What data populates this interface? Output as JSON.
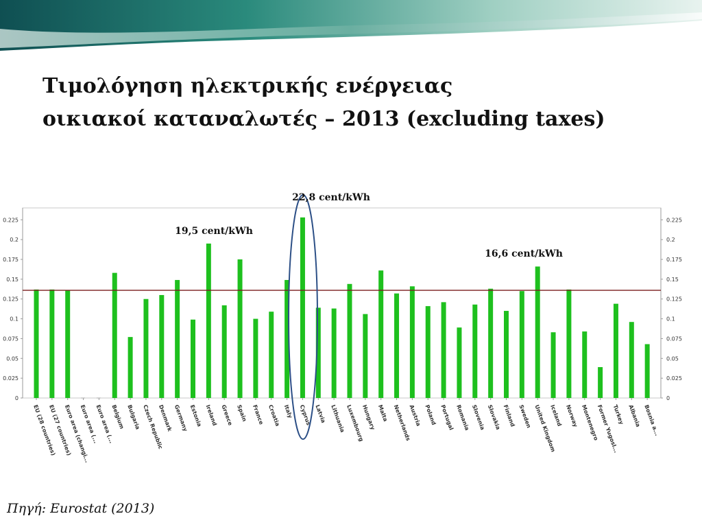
{
  "slide": {
    "title_line1": "Τιμολόγηση ηλεκτρικής ενέργειας",
    "title_line2": "οικιακοί καταναλωτές – 2013 (excluding taxes)",
    "source": "Πηγή: Eurostat (2013)"
  },
  "annotations": {
    "cyprus_label": "22,8 cent/kWh",
    "ireland_label": "19,5 cent/kWh",
    "uk_label": "16,6 cent/kWh"
  },
  "colors": {
    "bar": "#1ec01e",
    "reference_line": "#7a1f1f",
    "highlight_ellipse": "#2c4f86",
    "header_teal": "#1f6f6a"
  },
  "chart_data": {
    "type": "bar",
    "categories": [
      "EU (28 countries)",
      "EU (27 countries)",
      "Euro area (changi...",
      "Euro area (...",
      "Euro area (...",
      "Belgium",
      "Bulgaria",
      "Czech Republic",
      "Denmark",
      "Germany",
      "Estonia",
      "Ireland",
      "Greece",
      "Spain",
      "France",
      "Croatia",
      "Italy",
      "Cyprus",
      "Latvia",
      "Lithuania",
      "Luxembourg",
      "Hungary",
      "Malta",
      "Netherlands",
      "Austria",
      "Poland",
      "Portugal",
      "Romania",
      "Slovenia",
      "Slovakia",
      "Finland",
      "Sweden",
      "United Kingdom",
      "Iceland",
      "Norway",
      "Montenegro",
      "Former Yugosl...",
      "Turkey",
      "Albania",
      "Bosnia a..."
    ],
    "values": [
      0.137,
      0.137,
      0.136,
      null,
      null,
      0.158,
      0.077,
      0.125,
      0.13,
      0.149,
      0.099,
      0.195,
      0.117,
      0.175,
      0.1,
      0.109,
      0.149,
      0.228,
      0.114,
      0.113,
      0.144,
      0.106,
      0.161,
      0.132,
      0.141,
      0.116,
      0.121,
      0.089,
      0.118,
      0.138,
      0.11,
      0.135,
      0.166,
      0.083,
      0.137,
      0.084,
      0.039,
      0.119,
      0.096,
      0.068
    ],
    "reference_value": 0.136,
    "ylim": [
      0,
      0.24
    ],
    "yticks": [
      "0",
      "0.025",
      "0.05",
      "0.075",
      "0.1",
      "0.125",
      "0.15",
      "0.175",
      "0.2",
      "0.225"
    ],
    "title": "",
    "xlabel": "",
    "ylabel": "",
    "grid": false
  }
}
